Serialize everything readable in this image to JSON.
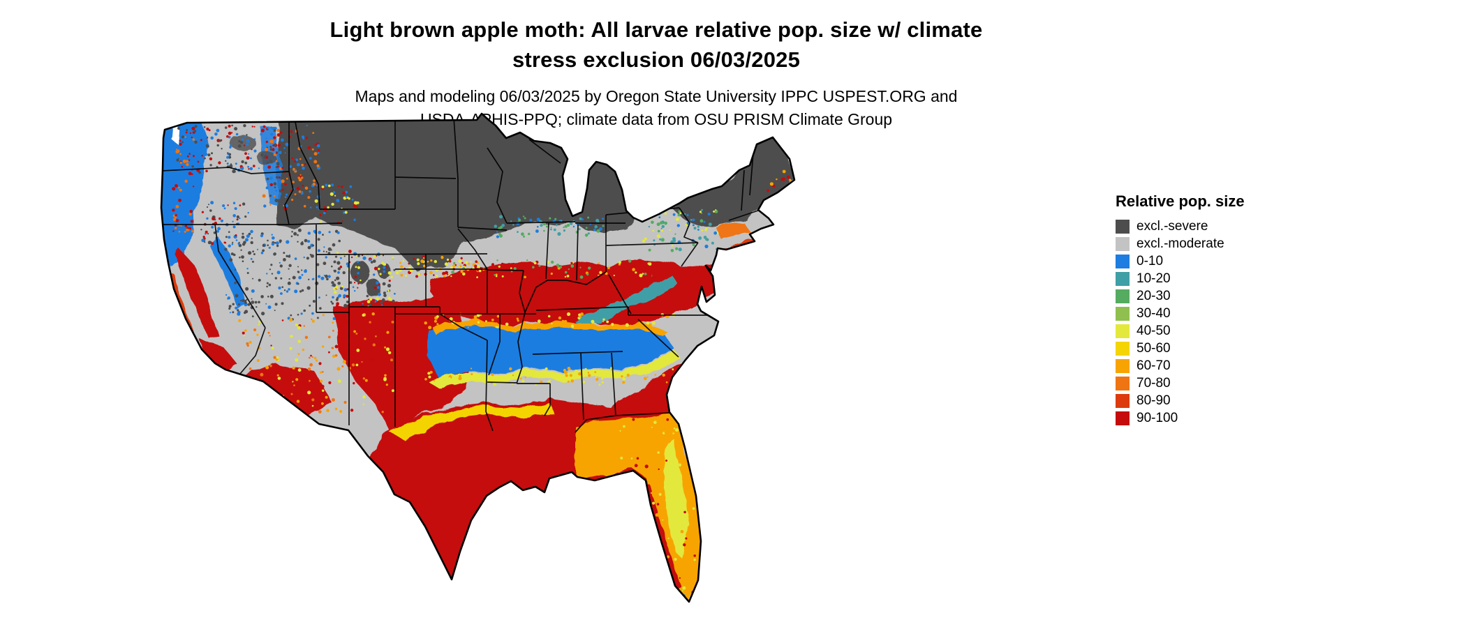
{
  "title": {
    "line1": "Light brown apple moth: All larvae relative pop. size w/ climate",
    "line2": "stress exclusion 06/03/2025"
  },
  "subtitle": {
    "line1": "Maps and modeling 06/03/2025 by Oregon State University IPPC USPEST.ORG and",
    "line2": "USDA-APHIS-PPQ; climate data from OSU PRISM Climate Group"
  },
  "legend": {
    "title": "Relative pop. size",
    "items": [
      {
        "label": "excl.-severe",
        "color": "#4d4d4d"
      },
      {
        "label": "excl.-moderate",
        "color": "#c3c3c3"
      },
      {
        "label": "0-10",
        "color": "#1d7de0"
      },
      {
        "label": "10-20",
        "color": "#3f9fa6"
      },
      {
        "label": "20-30",
        "color": "#55ab60"
      },
      {
        "label": "30-40",
        "color": "#8fc04f"
      },
      {
        "label": "40-50",
        "color": "#e3e83c"
      },
      {
        "label": "50-60",
        "color": "#f4d403"
      },
      {
        "label": "60-70",
        "color": "#f7a403"
      },
      {
        "label": "70-80",
        "color": "#ef7412"
      },
      {
        "label": "80-90",
        "color": "#dd3b0d"
      },
      {
        "label": "90-100",
        "color": "#c50b0b"
      }
    ]
  }
}
